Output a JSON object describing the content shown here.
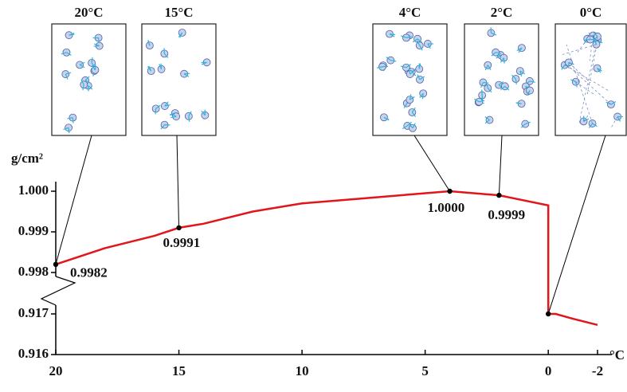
{
  "chart_data": {
    "type": "line",
    "y_label": "g/cm²",
    "x_label": "°C",
    "x": [
      20,
      18,
      16,
      15,
      14,
      12,
      10,
      8,
      6,
      4,
      2,
      0,
      0,
      -0.3,
      -1,
      -2
    ],
    "series": [
      {
        "color": "#e0161b",
        "values": [
          0.9982,
          0.9986,
          0.9989,
          0.9991,
          0.9992,
          0.9995,
          0.9997,
          0.9998,
          0.9999,
          1.0,
          0.9999,
          0.99965,
          0.917,
          0.917,
          0.91688,
          0.91673
        ]
      }
    ],
    "points": {
      "x": [
        20,
        15,
        4,
        2,
        0
      ],
      "values": [
        0.9982,
        0.9991,
        1.0,
        0.9999,
        0.917
      ],
      "value_labels": [
        "0.9982",
        "0.9991",
        "1.0000",
        "0.9999",
        null
      ]
    },
    "insets": [
      "20°C",
      "15°C",
      "4°C",
      "2°C",
      "0°C"
    ],
    "xlim": [
      20,
      -2
    ],
    "xticks": [
      20,
      15,
      10,
      5,
      0,
      -2
    ],
    "ylim": [
      0.916,
      1.0
    ],
    "y_break": [
      0.917,
      0.998
    ],
    "yticks": [
      {
        "value": 1.0,
        "label": "1.000"
      },
      0.999,
      0.998,
      0.917,
      0.916
    ]
  }
}
